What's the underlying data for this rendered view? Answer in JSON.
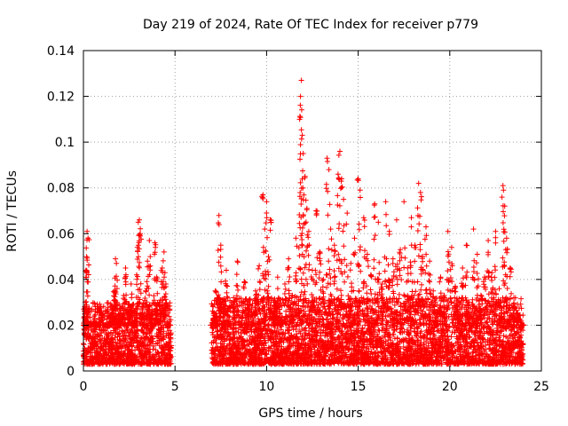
{
  "chart_data": {
    "type": "scatter",
    "title": "Day 219 of 2024, Rate Of TEC Index for receiver p779",
    "xlabel": "GPS time / hours",
    "ylabel": "ROTI / TECUs",
    "xlim": [
      0,
      25
    ],
    "ylim": [
      0,
      0.14
    ],
    "xticks": [
      0,
      5,
      10,
      15,
      20,
      25
    ],
    "xtick_labels": [
      "0",
      "5",
      "10",
      "15",
      "20",
      "25"
    ],
    "yticks": [
      0,
      0.02,
      0.04,
      0.06,
      0.08,
      0.1,
      0.12,
      0.14
    ],
    "ytick_labels": [
      "0",
      "0.02",
      "0.04",
      "0.06",
      "0.08",
      "0.1",
      "0.12",
      "0.14"
    ],
    "grid": true,
    "marker": "plus",
    "color": "#ff0000",
    "series": [
      {
        "name": "ROTI",
        "points": [
          [
            0.0,
            0.012
          ],
          [
            0.1,
            0.03
          ],
          [
            0.15,
            0.044
          ],
          [
            0.2,
            0.061
          ],
          [
            0.25,
            0.058
          ],
          [
            0.3,
            0.02
          ],
          [
            0.4,
            0.009
          ],
          [
            0.5,
            0.015
          ],
          [
            0.6,
            0.022
          ],
          [
            0.7,
            0.011
          ],
          [
            0.8,
            0.006
          ],
          [
            0.9,
            0.018
          ],
          [
            1.0,
            0.025
          ],
          [
            1.1,
            0.012
          ],
          [
            1.2,
            0.008
          ],
          [
            1.3,
            0.016
          ],
          [
            1.4,
            0.021
          ],
          [
            1.5,
            0.01
          ],
          [
            1.6,
            0.027
          ],
          [
            1.7,
            0.035
          ],
          [
            1.75,
            0.049
          ],
          [
            1.8,
            0.047
          ],
          [
            1.9,
            0.019
          ],
          [
            2.0,
            0.012
          ],
          [
            2.1,
            0.024
          ],
          [
            2.2,
            0.033
          ],
          [
            2.3,
            0.045
          ],
          [
            2.4,
            0.018
          ],
          [
            2.5,
            0.026
          ],
          [
            2.6,
            0.038
          ],
          [
            2.7,
            0.014
          ],
          [
            2.8,
            0.022
          ],
          [
            2.9,
            0.042
          ],
          [
            3.0,
            0.055
          ],
          [
            3.05,
            0.066
          ],
          [
            3.1,
            0.06
          ],
          [
            3.2,
            0.028
          ],
          [
            3.3,
            0.017
          ],
          [
            3.4,
            0.035
          ],
          [
            3.5,
            0.048
          ],
          [
            3.6,
            0.057
          ],
          [
            3.7,
            0.025
          ],
          [
            3.8,
            0.013
          ],
          [
            3.9,
            0.056
          ],
          [
            4.0,
            0.041
          ],
          [
            4.1,
            0.022
          ],
          [
            4.2,
            0.031
          ],
          [
            4.3,
            0.045
          ],
          [
            4.4,
            0.052
          ],
          [
            4.5,
            0.038
          ],
          [
            4.6,
            0.019
          ],
          [
            4.7,
            0.011
          ],
          [
            7.0,
            0.009
          ],
          [
            7.1,
            0.023
          ],
          [
            7.2,
            0.035
          ],
          [
            7.3,
            0.015
          ],
          [
            7.4,
            0.068
          ],
          [
            7.5,
            0.055
          ],
          [
            7.6,
            0.028
          ],
          [
            7.7,
            0.013
          ],
          [
            7.8,
            0.044
          ],
          [
            7.9,
            0.021
          ],
          [
            8.0,
            0.012
          ],
          [
            8.2,
            0.032
          ],
          [
            8.4,
            0.048
          ],
          [
            8.6,
            0.018
          ],
          [
            8.8,
            0.039
          ],
          [
            9.0,
            0.027
          ],
          [
            9.2,
            0.014
          ],
          [
            9.4,
            0.035
          ],
          [
            9.6,
            0.046
          ],
          [
            9.8,
            0.077
          ],
          [
            9.9,
            0.062
          ],
          [
            10.0,
            0.074
          ],
          [
            10.1,
            0.05
          ],
          [
            10.2,
            0.066
          ],
          [
            10.4,
            0.03
          ],
          [
            10.6,
            0.041
          ],
          [
            10.8,
            0.022
          ],
          [
            11.0,
            0.038
          ],
          [
            11.2,
            0.049
          ],
          [
            11.4,
            0.033
          ],
          [
            11.6,
            0.058
          ],
          [
            11.8,
            0.11
          ],
          [
            11.85,
            0.12
          ],
          [
            11.9,
            0.127
          ],
          [
            11.95,
            0.103
          ],
          [
            12.0,
            0.095
          ],
          [
            12.1,
            0.085
          ],
          [
            12.2,
            0.071
          ],
          [
            12.3,
            0.061
          ],
          [
            12.5,
            0.044
          ],
          [
            12.7,
            0.07
          ],
          [
            12.9,
            0.052
          ],
          [
            13.1,
            0.04
          ],
          [
            13.3,
            0.093
          ],
          [
            13.4,
            0.088
          ],
          [
            13.5,
            0.062
          ],
          [
            13.7,
            0.055
          ],
          [
            13.9,
            0.086
          ],
          [
            14.0,
            0.096
          ],
          [
            14.1,
            0.084
          ],
          [
            14.2,
            0.075
          ],
          [
            14.4,
            0.069
          ],
          [
            14.6,
            0.047
          ],
          [
            14.8,
            0.058
          ],
          [
            15.0,
            0.084
          ],
          [
            15.1,
            0.079
          ],
          [
            15.3,
            0.067
          ],
          [
            15.5,
            0.051
          ],
          [
            15.7,
            0.042
          ],
          [
            15.9,
            0.073
          ],
          [
            16.1,
            0.065
          ],
          [
            16.3,
            0.038
          ],
          [
            16.5,
            0.074
          ],
          [
            16.7,
            0.061
          ],
          [
            16.9,
            0.049
          ],
          [
            17.1,
            0.066
          ],
          [
            17.3,
            0.053
          ],
          [
            17.5,
            0.074
          ],
          [
            17.7,
            0.045
          ],
          [
            17.9,
            0.067
          ],
          [
            18.1,
            0.055
          ],
          [
            18.3,
            0.082
          ],
          [
            18.4,
            0.078
          ],
          [
            18.5,
            0.05
          ],
          [
            18.7,
            0.063
          ],
          [
            18.9,
            0.048
          ],
          [
            19.1,
            0.035
          ],
          [
            19.3,
            0.026
          ],
          [
            19.5,
            0.041
          ],
          [
            19.7,
            0.033
          ],
          [
            19.9,
            0.061
          ],
          [
            20.1,
            0.054
          ],
          [
            20.3,
            0.037
          ],
          [
            20.5,
            0.029
          ],
          [
            20.7,
            0.045
          ],
          [
            20.9,
            0.055
          ],
          [
            21.1,
            0.024
          ],
          [
            21.3,
            0.062
          ],
          [
            21.5,
            0.051
          ],
          [
            21.7,
            0.033
          ],
          [
            21.9,
            0.041
          ],
          [
            22.1,
            0.057
          ],
          [
            22.3,
            0.043
          ],
          [
            22.5,
            0.061
          ],
          [
            22.7,
            0.036
          ],
          [
            22.9,
            0.081
          ],
          [
            23.0,
            0.072
          ],
          [
            23.1,
            0.058
          ],
          [
            23.3,
            0.045
          ],
          [
            23.5,
            0.032
          ],
          [
            23.7,
            0.025
          ],
          [
            23.9,
            0.019
          ],
          [
            24.0,
            0.012
          ]
        ],
        "baseline_band": [
          {
            "x_start": 0.0,
            "x_end": 4.8,
            "min": 0.003,
            "max": 0.03
          },
          {
            "x_start": 7.0,
            "x_end": 24.0,
            "min": 0.003,
            "max": 0.032
          }
        ]
      }
    ]
  }
}
